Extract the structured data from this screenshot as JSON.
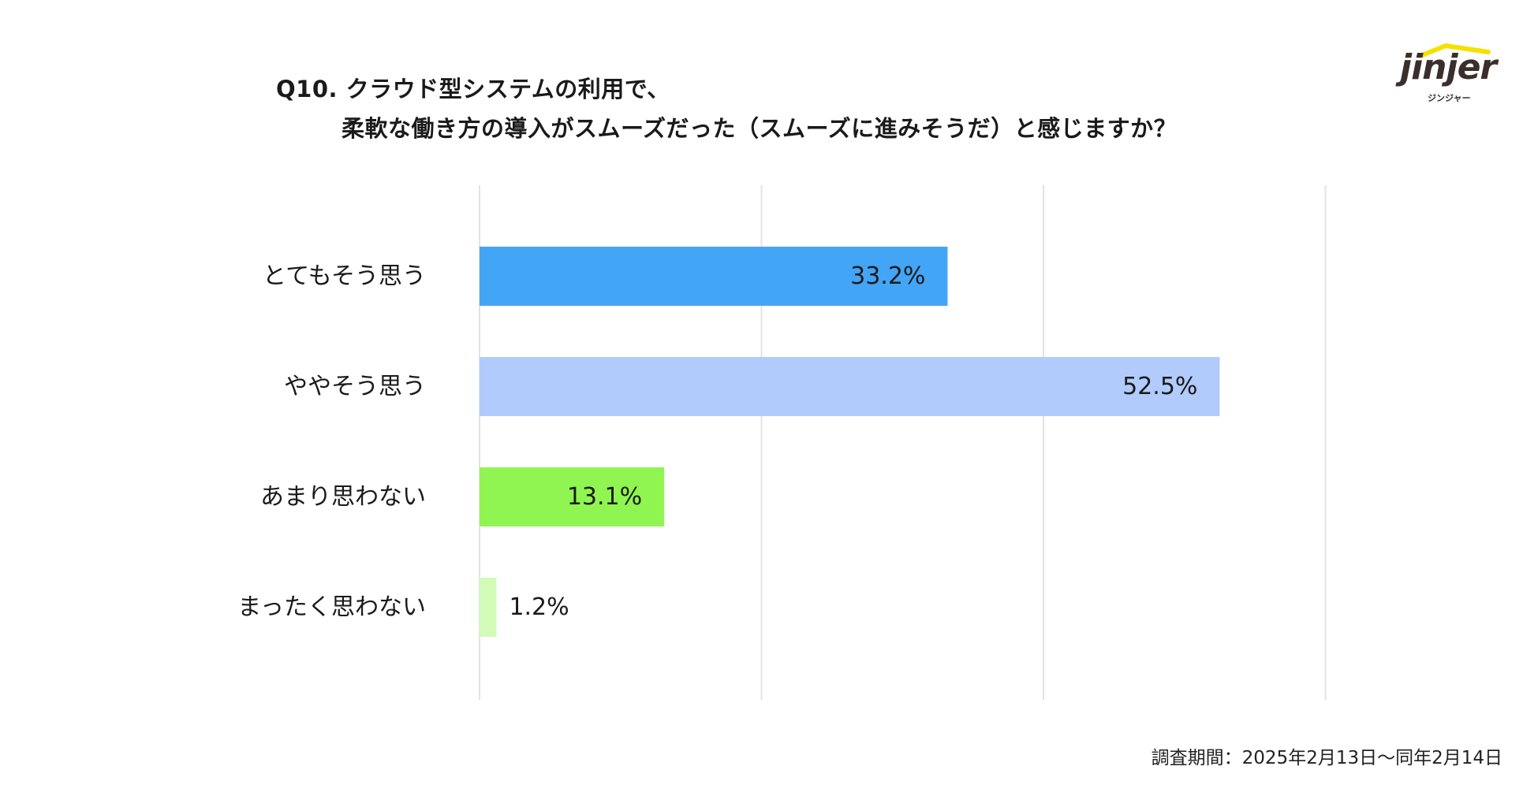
{
  "title": {
    "line1": "Q10. クラウド型システムの利用で、",
    "line2": "柔軟な働き方の導入がスムーズだった（スムーズに進みそうだ）と感じますか？"
  },
  "logo": {
    "word": "jinjer",
    "kana": "ジンジャー",
    "accent": "#f5e100"
  },
  "footnote": "調査期間：2025年2月13日〜同年2月14日",
  "chart_data": {
    "type": "bar",
    "orientation": "horizontal",
    "categories": [
      "とてもそう思う",
      "ややそう思う",
      "あまり思わない",
      "まったく思わない"
    ],
    "values": [
      33.2,
      52.5,
      13.1,
      1.2
    ],
    "value_labels": [
      "33.2%",
      "52.5%",
      "13.1%",
      "1.2%"
    ],
    "colors": [
      "#43a5f5",
      "#b1cbfc",
      "#90f550",
      "#d2fbb8"
    ],
    "xlim": [
      0,
      60
    ],
    "grid_values": [
      0,
      20,
      40,
      60
    ],
    "grid": true,
    "title": "",
    "xlabel": "",
    "ylabel": ""
  }
}
